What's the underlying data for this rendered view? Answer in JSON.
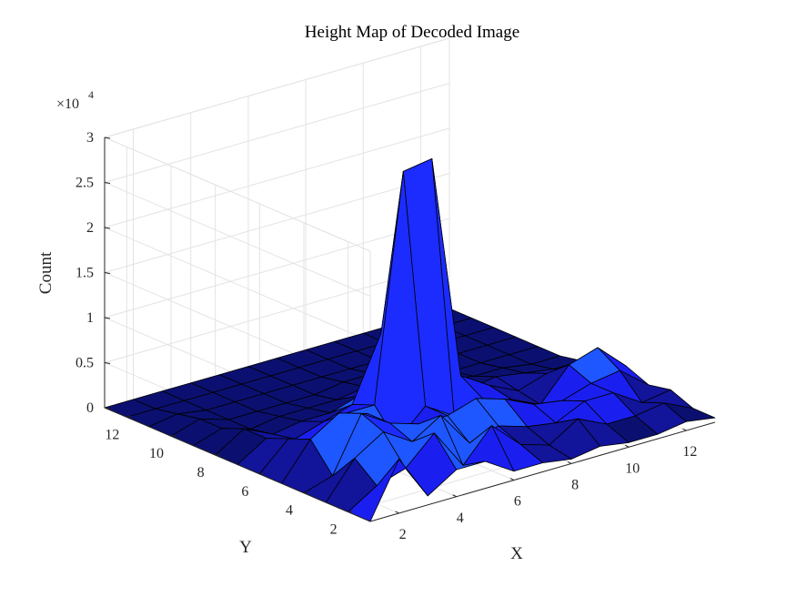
{
  "chart_data": {
    "type": "surface",
    "title": "Height Map of Decoded Image",
    "xlabel": "X",
    "ylabel": "Y",
    "zlabel": "Count",
    "z_exponent_label": "×10",
    "z_exponent_value": "4",
    "xlim": [
      1,
      13
    ],
    "ylim": [
      1,
      13
    ],
    "zlim": [
      0,
      30000
    ],
    "x_ticks": [
      2,
      4,
      6,
      8,
      10,
      12
    ],
    "y_ticks": [
      2,
      4,
      6,
      8,
      10,
      12
    ],
    "z_ticks": [
      0,
      5000,
      10000,
      15000,
      20000,
      25000,
      30000
    ],
    "z_tick_labels": [
      "0",
      "0.5",
      "1",
      "1.5",
      "2",
      "2.5",
      "3"
    ],
    "grid": true,
    "colormap": "blue (dark navy for low, bright blue for mid, red for peak)",
    "x": [
      1,
      2,
      3,
      4,
      5,
      6,
      7,
      8,
      9,
      10,
      11,
      12,
      13
    ],
    "y": [
      1,
      2,
      3,
      4,
      5,
      6,
      7,
      8,
      9,
      10,
      11,
      12,
      13
    ],
    "z": [
      [
        0,
        0,
        0,
        0,
        0,
        0,
        0,
        0,
        0,
        0,
        0,
        0,
        0
      ],
      [
        6000,
        2000,
        4000,
        1000,
        4000,
        3000,
        2000,
        2000,
        1000,
        1000,
        500,
        0,
        0
      ],
      [
        1000,
        3000,
        6000,
        7000,
        6000,
        2000,
        1000,
        500,
        0,
        0,
        0,
        0,
        0
      ],
      [
        3000,
        6000,
        4000,
        5000,
        5000,
        4000,
        2000,
        1000,
        500,
        0,
        0,
        0,
        0
      ],
      [
        3000,
        1500,
        6000,
        4000,
        1000,
        4000,
        3000,
        1000,
        500,
        0,
        0,
        0,
        0
      ],
      [
        1000,
        5000,
        2000,
        4000,
        4000,
        29000,
        10000,
        2000,
        500,
        0,
        0,
        0,
        0
      ],
      [
        1000,
        2000,
        3000,
        5000,
        2000,
        29500,
        15000,
        4000,
        1000,
        500,
        0,
        0,
        0
      ],
      [
        500,
        1000,
        2000,
        4000,
        3000,
        4500,
        7000,
        2000,
        1500,
        500,
        0,
        0,
        0
      ],
      [
        1000,
        3000,
        1500,
        2500,
        2000,
        2500,
        1000,
        1000,
        500,
        0,
        0,
        0,
        0
      ],
      [
        500,
        1500,
        3000,
        2000,
        500,
        1000,
        1500,
        500,
        0,
        0,
        0,
        0,
        0
      ],
      [
        500,
        1500,
        3000,
        3000,
        4000,
        2000,
        1000,
        500,
        0,
        0,
        0,
        0,
        0
      ],
      [
        1000,
        2000,
        1000,
        3500,
        5000,
        1500,
        500,
        0,
        0,
        0,
        0,
        0,
        0
      ],
      [
        500,
        500,
        1500,
        1000,
        2000,
        1000,
        500,
        0,
        0,
        0,
        0,
        0,
        0
      ]
    ]
  }
}
